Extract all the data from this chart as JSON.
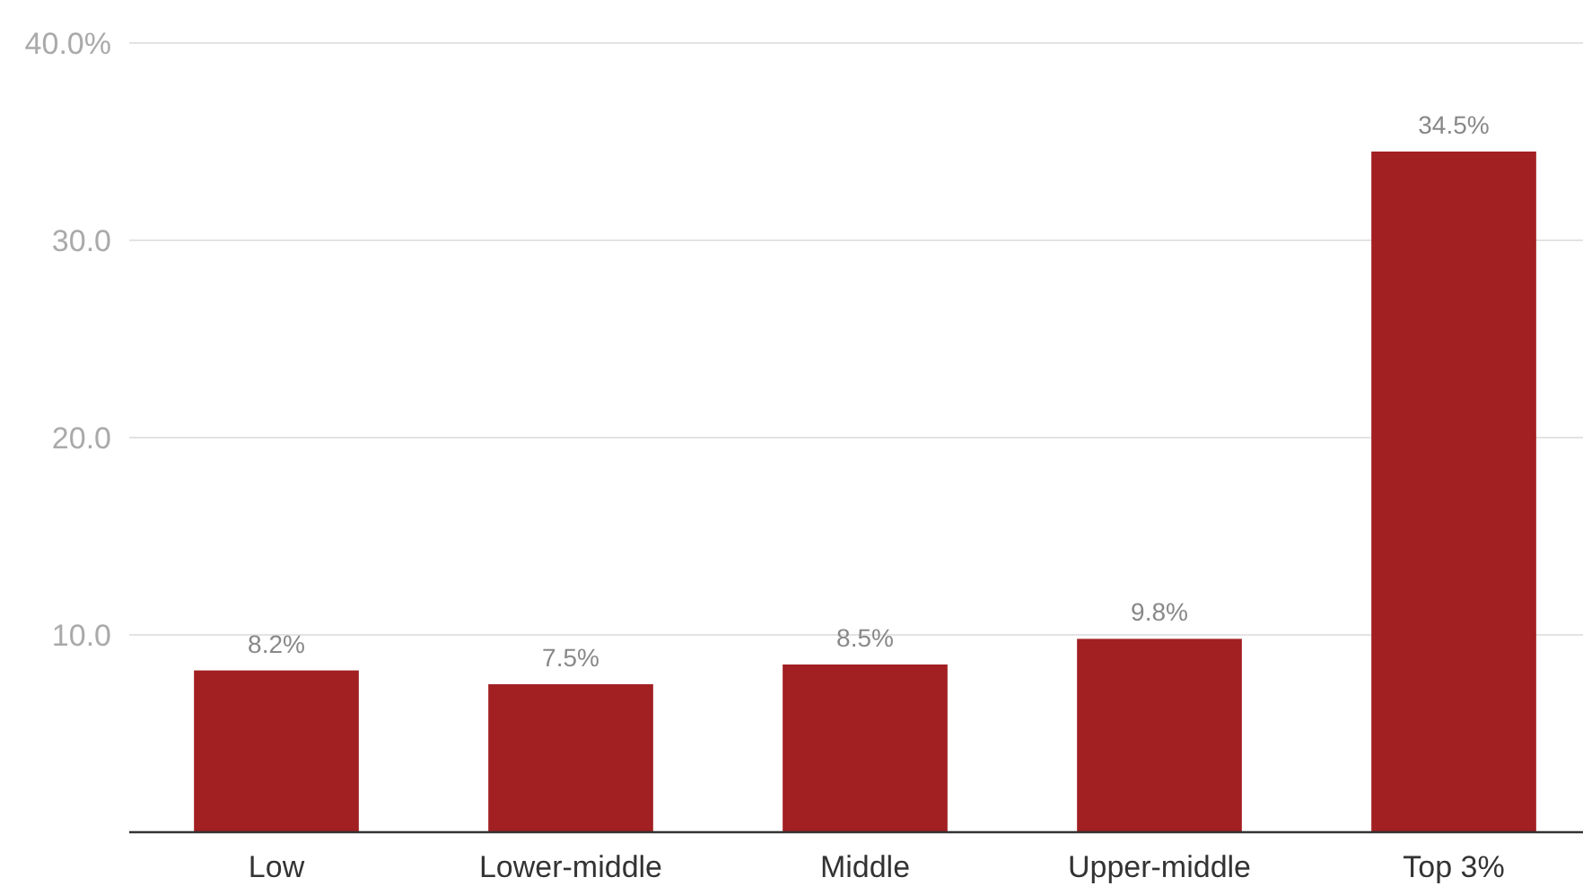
{
  "chart_data": {
    "type": "bar",
    "categories": [
      "Low",
      "Lower-middle",
      "Middle",
      "Upper-middle",
      "Top 3%"
    ],
    "values": [
      8.2,
      7.5,
      8.5,
      9.8,
      34.5
    ],
    "value_labels": [
      "8.2%",
      "7.5%",
      "8.5%",
      "9.8%",
      "34.5%"
    ],
    "color": "#a21f22",
    "ylim": [
      0,
      40
    ],
    "yticks": [
      {
        "value": 0,
        "label": null
      },
      {
        "value": 10,
        "label": "10.0"
      },
      {
        "value": 20,
        "label": "20.0"
      },
      {
        "value": 30,
        "label": "30.0"
      },
      {
        "value": 40,
        "label": "40.0%"
      }
    ],
    "grid": "y"
  }
}
